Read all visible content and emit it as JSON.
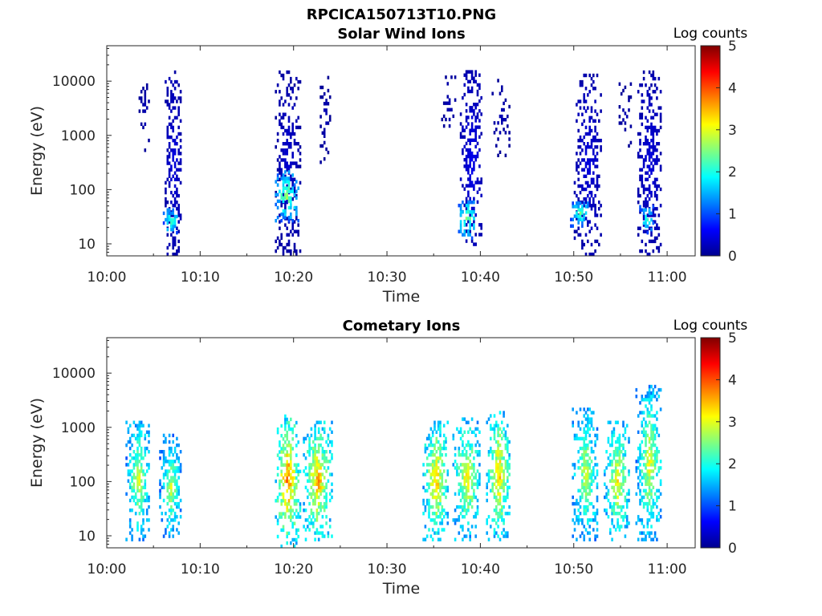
{
  "figure": {
    "title": "RPCICA150713T10.PNG"
  },
  "chart_data": [
    {
      "type": "heatmap",
      "title": "Solar Wind Ions",
      "xlabel": "Time",
      "ylabel": "Energy (eV)",
      "x_range": [
        "10:00",
        "11:03"
      ],
      "y_range_eV": [
        6,
        45000
      ],
      "y_scale": "log",
      "x_ticks": [
        "10:00",
        "10:10",
        "10:20",
        "10:30",
        "10:40",
        "10:50",
        "11:00"
      ],
      "y_ticks": [
        "10",
        "100",
        "1000",
        "10000"
      ],
      "colorbar": {
        "label": "Log counts",
        "min": 0,
        "max": 5,
        "ticks": [
          "0",
          "1",
          "2",
          "3",
          "4",
          "5"
        ],
        "colormap": "jet"
      },
      "grid": false,
      "bursts": [
        {
          "start_min": 3.4,
          "end_min": 4.6,
          "emin_eV": 500,
          "emax_eV": 10000,
          "level": 0.2,
          "density": 0.32
        },
        {
          "start_min": 6.2,
          "end_min": 8.0,
          "emin_eV": 6,
          "emax_eV": 14000,
          "level": 0.35,
          "density": 0.7
        },
        {
          "start_min": 6.0,
          "end_min": 7.6,
          "emin_eV": 15,
          "emax_eV": 40,
          "level": 1.8,
          "density": 0.85
        },
        {
          "start_min": 18.0,
          "end_min": 20.6,
          "emin_eV": 6,
          "emax_eV": 15000,
          "level": 0.3,
          "density": 0.55
        },
        {
          "start_min": 18.0,
          "end_min": 20.4,
          "emin_eV": 25,
          "emax_eV": 200,
          "level": 2.0,
          "density": 0.85
        },
        {
          "start_min": 22.8,
          "end_min": 23.8,
          "emin_eV": 300,
          "emax_eV": 15000,
          "level": 0.2,
          "density": 0.3
        },
        {
          "start_min": 35.8,
          "end_min": 37.4,
          "emin_eV": 700,
          "emax_eV": 15000,
          "level": 0.2,
          "density": 0.3
        },
        {
          "start_min": 37.8,
          "end_min": 40.2,
          "emin_eV": 8,
          "emax_eV": 15000,
          "level": 0.4,
          "density": 0.6
        },
        {
          "start_min": 37.6,
          "end_min": 39.4,
          "emin_eV": 12,
          "emax_eV": 60,
          "level": 2.0,
          "density": 0.8
        },
        {
          "start_min": 41.0,
          "end_min": 43.2,
          "emin_eV": 400,
          "emax_eV": 10000,
          "level": 0.2,
          "density": 0.28
        },
        {
          "start_min": 50.0,
          "end_min": 53.0,
          "emin_eV": 6,
          "emax_eV": 14000,
          "level": 0.35,
          "density": 0.55
        },
        {
          "start_min": 49.6,
          "end_min": 51.6,
          "emin_eV": 20,
          "emax_eV": 60,
          "level": 1.8,
          "density": 0.85
        },
        {
          "start_min": 54.8,
          "end_min": 56.2,
          "emin_eV": 600,
          "emax_eV": 10000,
          "level": 0.2,
          "density": 0.3
        },
        {
          "start_min": 56.8,
          "end_min": 59.4,
          "emin_eV": 6,
          "emax_eV": 14000,
          "level": 0.35,
          "density": 0.6
        },
        {
          "start_min": 57.0,
          "end_min": 58.6,
          "emin_eV": 15,
          "emax_eV": 50,
          "level": 1.7,
          "density": 0.8
        }
      ]
    },
    {
      "type": "heatmap",
      "title": "Cometary Ions",
      "xlabel": "Time",
      "ylabel": "Energy (eV)",
      "x_range": [
        "10:00",
        "11:03"
      ],
      "y_range_eV": [
        6,
        45000
      ],
      "y_scale": "log",
      "x_ticks": [
        "10:00",
        "10:10",
        "10:20",
        "10:30",
        "10:40",
        "10:50",
        "11:00"
      ],
      "y_ticks": [
        "10",
        "100",
        "1000",
        "10000"
      ],
      "colorbar": {
        "label": "Log counts",
        "min": 0,
        "max": 5,
        "ticks": [
          "0",
          "1",
          "2",
          "3",
          "4",
          "5"
        ],
        "colormap": "jet"
      },
      "grid": false,
      "bursts": [
        {
          "start_min": 2.0,
          "end_min": 4.6,
          "emin_eV": 8,
          "emax_eV": 1300,
          "level": 2.2,
          "density": 0.75
        },
        {
          "start_min": 5.6,
          "end_min": 8.0,
          "emin_eV": 8,
          "emax_eV": 700,
          "level": 2.1,
          "density": 0.75
        },
        {
          "start_min": 18.0,
          "end_min": 20.6,
          "emin_eV": 6,
          "emax_eV": 1600,
          "level": 2.9,
          "density": 0.8
        },
        {
          "start_min": 21.0,
          "end_min": 24.0,
          "emin_eV": 8,
          "emax_eV": 1200,
          "level": 2.7,
          "density": 0.8
        },
        {
          "start_min": 33.8,
          "end_min": 36.6,
          "emin_eV": 8,
          "emax_eV": 1300,
          "level": 2.6,
          "density": 0.75
        },
        {
          "start_min": 37.0,
          "end_min": 40.0,
          "emin_eV": 8,
          "emax_eV": 1500,
          "level": 2.4,
          "density": 0.75
        },
        {
          "start_min": 40.6,
          "end_min": 43.2,
          "emin_eV": 8,
          "emax_eV": 2000,
          "level": 2.6,
          "density": 0.75
        },
        {
          "start_min": 49.8,
          "end_min": 52.6,
          "emin_eV": 8,
          "emax_eV": 2200,
          "level": 2.2,
          "density": 0.75
        },
        {
          "start_min": 53.2,
          "end_min": 56.0,
          "emin_eV": 8,
          "emax_eV": 1200,
          "level": 2.4,
          "density": 0.75
        },
        {
          "start_min": 56.6,
          "end_min": 59.4,
          "emin_eV": 8,
          "emax_eV": 5500,
          "level": 2.3,
          "density": 0.75
        }
      ]
    }
  ]
}
